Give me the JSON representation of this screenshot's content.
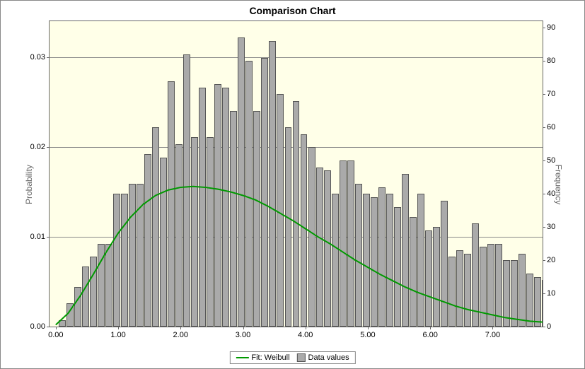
{
  "title": "Comparison Chart",
  "axis": {
    "left_label": "Probability",
    "right_label": "Frequency",
    "left_ticks": [
      0.0,
      0.01,
      0.02,
      0.03
    ],
    "left_tick_labels": [
      "0.00",
      "0.01",
      "0.02",
      "0.03"
    ],
    "right_ticks": [
      0,
      10,
      20,
      30,
      40,
      50,
      60,
      70,
      80,
      90
    ],
    "x_ticks": [
      0.0,
      1.0,
      2.0,
      3.0,
      4.0,
      5.0,
      6.0,
      7.0
    ],
    "x_tick_labels": [
      "0.00",
      "1.00",
      "2.00",
      "3.00",
      "4.00",
      "5.00",
      "6.00",
      "7.00"
    ],
    "x_min": -0.1,
    "x_max": 7.8,
    "left_min": 0,
    "left_max": 0.034,
    "right_min": 0,
    "right_max": 92
  },
  "colors": {
    "plot_bg": "#ffffe8",
    "border": "#666666",
    "grid": "#888888",
    "bar_fill": "#aaaaaa",
    "bar_border": "#555555",
    "curve": "#009900",
    "text": "#000000",
    "axis_label": "#666666"
  },
  "legend": {
    "fit_label": "Fit: Weibull",
    "data_label": "Data values"
  },
  "bars": {
    "x_step": 0.125,
    "x_start": 0.1,
    "heights_freq": [
      2,
      7,
      12,
      18,
      21,
      25,
      25,
      40,
      40,
      43,
      43,
      52,
      60,
      51,
      74,
      55,
      82,
      57,
      72,
      57,
      73,
      72,
      65,
      87,
      80,
      65,
      81,
      86,
      70,
      60,
      68,
      58,
      54,
      48,
      47,
      40,
      50,
      50,
      43,
      40,
      39,
      42,
      40,
      36,
      46,
      33,
      40,
      29,
      30,
      38,
      21,
      23,
      22,
      31,
      24,
      25,
      25,
      20,
      20,
      22,
      16,
      15,
      14,
      11,
      13,
      10,
      7,
      5,
      4,
      4,
      5,
      3,
      2,
      4,
      4,
      3,
      2,
      1
    ]
  },
  "curve": {
    "type": "weibull_fit",
    "points": [
      [
        0.0,
        0.0002
      ],
      [
        0.2,
        0.0015
      ],
      [
        0.4,
        0.0035
      ],
      [
        0.6,
        0.0058
      ],
      [
        0.8,
        0.0082
      ],
      [
        1.0,
        0.0104
      ],
      [
        1.2,
        0.0122
      ],
      [
        1.4,
        0.0136
      ],
      [
        1.6,
        0.0146
      ],
      [
        1.8,
        0.0152
      ],
      [
        2.0,
        0.0155
      ],
      [
        2.2,
        0.0156
      ],
      [
        2.4,
        0.0155
      ],
      [
        2.6,
        0.0153
      ],
      [
        2.8,
        0.015
      ],
      [
        3.0,
        0.0146
      ],
      [
        3.2,
        0.0141
      ],
      [
        3.4,
        0.0134
      ],
      [
        3.6,
        0.0126
      ],
      [
        3.8,
        0.0118
      ],
      [
        4.0,
        0.0109
      ],
      [
        4.2,
        0.01
      ],
      [
        4.4,
        0.0092
      ],
      [
        4.6,
        0.0083
      ],
      [
        4.8,
        0.0074
      ],
      [
        5.0,
        0.0066
      ],
      [
        5.2,
        0.0058
      ],
      [
        5.4,
        0.0051
      ],
      [
        5.6,
        0.0044
      ],
      [
        5.8,
        0.0038
      ],
      [
        6.0,
        0.0033
      ],
      [
        6.2,
        0.0028
      ],
      [
        6.4,
        0.0023
      ],
      [
        6.6,
        0.0019
      ],
      [
        6.8,
        0.0016
      ],
      [
        7.0,
        0.0013
      ],
      [
        7.2,
        0.001
      ],
      [
        7.4,
        0.0008
      ],
      [
        7.6,
        0.0006
      ],
      [
        7.8,
        0.0005
      ]
    ]
  }
}
